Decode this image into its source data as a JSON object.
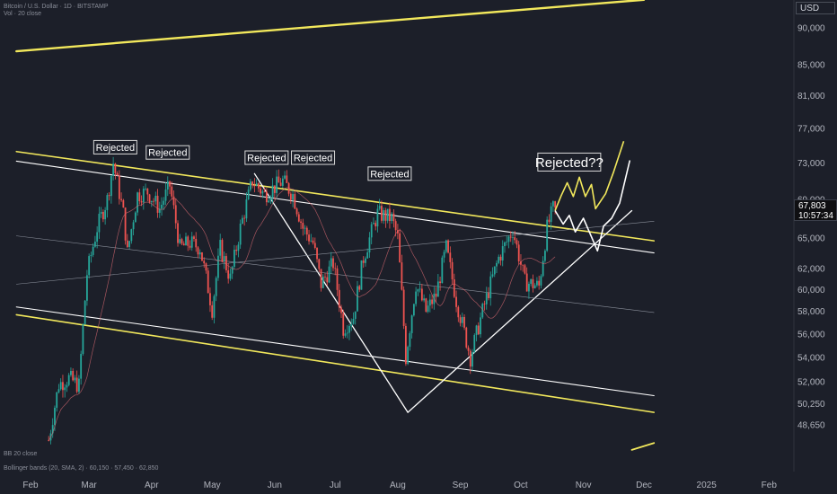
{
  "header": {
    "symbol_line": "Bitcoin / U.S. Dollar · 1D · BITSTAMP",
    "indicator_line": "Vol · 20 close"
  },
  "currency_label": "USD",
  "price_tag": {
    "price": "67,803",
    "countdown": "10:57:34"
  },
  "footer": {
    "line1": "BB 20 close",
    "line2": "Bollinger bands (20, SMA, 2) · 60,150 · 57,450 · 62,850"
  },
  "chart_data": {
    "type": "candlestick",
    "title": "",
    "xlabel": "",
    "ylabel": "",
    "x_range": [
      "2024-01-25",
      "2025-02-25"
    ],
    "y_range": [
      46000,
      93000
    ],
    "y_ticks": [
      {
        "value": 90000,
        "label": "90,000"
      },
      {
        "value": 85000,
        "label": "85,000"
      },
      {
        "value": 81000,
        "label": "81,000"
      },
      {
        "value": 77000,
        "label": "77,000"
      },
      {
        "value": 73000,
        "label": "73,000"
      },
      {
        "value": 69000,
        "label": "69,000"
      },
      {
        "value": 65000,
        "label": "65,000"
      },
      {
        "value": 62000,
        "label": "62,000"
      },
      {
        "value": 60000,
        "label": "60,000"
      },
      {
        "value": 58000,
        "label": "58,000"
      },
      {
        "value": 56000,
        "label": "56,000"
      },
      {
        "value": 54000,
        "label": "54,000"
      },
      {
        "value": 52000,
        "label": "52,000"
      },
      {
        "value": 50250,
        "label": "50,250"
      },
      {
        "value": 48650,
        "label": "48,650"
      }
    ],
    "x_ticks": [
      {
        "date": "2024-02-01",
        "label": "Feb"
      },
      {
        "date": "2024-03-01",
        "label": "Mar"
      },
      {
        "date": "2024-04-01",
        "label": "Apr"
      },
      {
        "date": "2024-05-01",
        "label": "May"
      },
      {
        "date": "2024-06-01",
        "label": "Jun"
      },
      {
        "date": "2024-07-01",
        "label": "Jul"
      },
      {
        "date": "2024-08-01",
        "label": "Aug"
      },
      {
        "date": "2024-09-01",
        "label": "Sep"
      },
      {
        "date": "2024-10-01",
        "label": "Oct"
      },
      {
        "date": "2024-11-01",
        "label": "Nov"
      },
      {
        "date": "2024-12-01",
        "label": "Dec"
      },
      {
        "date": "2025-01-01",
        "label": "2025"
      },
      {
        "date": "2025-02-01",
        "label": "Feb"
      }
    ],
    "last_price": 67803,
    "close_series": [
      {
        "date": "2024-02-10",
        "close": 47500
      },
      {
        "date": "2024-02-15",
        "close": 51800
      },
      {
        "date": "2024-02-20",
        "close": 52300
      },
      {
        "date": "2024-02-25",
        "close": 51700
      },
      {
        "date": "2024-02-29",
        "close": 61500
      },
      {
        "date": "2024-03-05",
        "close": 66000
      },
      {
        "date": "2024-03-10",
        "close": 69000
      },
      {
        "date": "2024-03-13",
        "close": 73000
      },
      {
        "date": "2024-03-18",
        "close": 67500
      },
      {
        "date": "2024-03-20",
        "close": 63500
      },
      {
        "date": "2024-03-25",
        "close": 69500
      },
      {
        "date": "2024-03-30",
        "close": 69800
      },
      {
        "date": "2024-04-05",
        "close": 68000
      },
      {
        "date": "2024-04-10",
        "close": 70500
      },
      {
        "date": "2024-04-15",
        "close": 64000
      },
      {
        "date": "2024-04-20",
        "close": 64500
      },
      {
        "date": "2024-04-25",
        "close": 64000
      },
      {
        "date": "2024-05-01",
        "close": 58200
      },
      {
        "date": "2024-05-05",
        "close": 64000
      },
      {
        "date": "2024-05-10",
        "close": 61000
      },
      {
        "date": "2024-05-15",
        "close": 66000
      },
      {
        "date": "2024-05-21",
        "close": 71000
      },
      {
        "date": "2024-05-27",
        "close": 69500
      },
      {
        "date": "2024-06-05",
        "close": 71000
      },
      {
        "date": "2024-06-10",
        "close": 69500
      },
      {
        "date": "2024-06-15",
        "close": 66000
      },
      {
        "date": "2024-06-20",
        "close": 64500
      },
      {
        "date": "2024-06-24",
        "close": 60500
      },
      {
        "date": "2024-06-30",
        "close": 62500
      },
      {
        "date": "2024-07-05",
        "close": 56500
      },
      {
        "date": "2024-07-10",
        "close": 57500
      },
      {
        "date": "2024-07-15",
        "close": 63000
      },
      {
        "date": "2024-07-22",
        "close": 67500
      },
      {
        "date": "2024-07-29",
        "close": 67000
      },
      {
        "date": "2024-08-01",
        "close": 65000
      },
      {
        "date": "2024-08-05",
        "close": 54000
      },
      {
        "date": "2024-08-10",
        "close": 60500
      },
      {
        "date": "2024-08-15",
        "close": 58000
      },
      {
        "date": "2024-08-20",
        "close": 59500
      },
      {
        "date": "2024-08-25",
        "close": 64000
      },
      {
        "date": "2024-08-30",
        "close": 59000
      },
      {
        "date": "2024-09-06",
        "close": 54000
      },
      {
        "date": "2024-09-12",
        "close": 58000
      },
      {
        "date": "2024-09-20",
        "close": 63000
      },
      {
        "date": "2024-09-27",
        "close": 65800
      },
      {
        "date": "2024-10-03",
        "close": 60700
      },
      {
        "date": "2024-10-10",
        "close": 60300
      },
      {
        "date": "2024-10-14",
        "close": 66000
      },
      {
        "date": "2024-10-17",
        "close": 68000
      },
      {
        "date": "2024-10-18",
        "close": 67803
      }
    ],
    "annotations": [
      {
        "text": "Rejected",
        "date": "2024-03-14",
        "value": 74800,
        "size": "small"
      },
      {
        "text": "Rejected",
        "date": "2024-04-09",
        "value": 74200,
        "size": "small"
      },
      {
        "text": "Rejected",
        "date": "2024-05-28",
        "value": 73600,
        "size": "small"
      },
      {
        "text": "Rejected",
        "date": "2024-06-20",
        "value": 73600,
        "size": "small"
      },
      {
        "text": "Rejected",
        "date": "2024-07-28",
        "value": 71800,
        "size": "small"
      },
      {
        "text": "Rejected??",
        "date": "2024-10-25",
        "value": 73100,
        "size": "large"
      }
    ],
    "trendlines": [
      {
        "color": "#f2e85c",
        "width": 1.6,
        "p1": {
          "date": "2024-01-25",
          "value": 74300
        },
        "p2": {
          "date": "2024-12-06",
          "value": 64700
        }
      },
      {
        "color": "#f2e85c",
        "width": 1.6,
        "p1": {
          "date": "2024-01-25",
          "value": 57700
        },
        "p2": {
          "date": "2024-12-06",
          "value": 49600
        }
      },
      {
        "color": "#f2e85c",
        "width": 2.4,
        "p1": {
          "date": "2024-01-25",
          "value": 86800
        },
        "p2": {
          "date": "2024-12-01",
          "value": 94000
        }
      },
      {
        "color": "#f2e85c",
        "width": 1.8,
        "p1": {
          "date": "2024-11-25",
          "value": 46800
        },
        "p2": {
          "date": "2024-12-06",
          "value": 47300
        }
      },
      {
        "color": "#ffffff",
        "width": 1.1,
        "p1": {
          "date": "2024-01-25",
          "value": 73200
        },
        "p2": {
          "date": "2024-12-06",
          "value": 63500
        }
      },
      {
        "color": "#ffffff",
        "width": 1.1,
        "p1": {
          "date": "2024-01-25",
          "value": 58400
        },
        "p2": {
          "date": "2024-12-06",
          "value": 50900
        }
      },
      {
        "color": "#ffffff",
        "width": 1.3,
        "p1": {
          "date": "2024-05-22",
          "value": 71800
        },
        "p2": {
          "date": "2024-08-06",
          "value": 49600
        }
      },
      {
        "color": "#ffffff",
        "width": 1.3,
        "p1": {
          "date": "2024-08-06",
          "value": 49600
        },
        "p2": {
          "date": "2024-11-25",
          "value": 67800
        }
      },
      {
        "color": "#8a8f9a",
        "width": 0.6,
        "p1": {
          "date": "2024-01-25",
          "value": 60500
        },
        "p2": {
          "date": "2024-12-06",
          "value": 66700
        }
      },
      {
        "color": "#8a8f9a",
        "width": 0.6,
        "p1": {
          "date": "2024-01-25",
          "value": 65200
        },
        "p2": {
          "date": "2024-12-06",
          "value": 57900
        }
      }
    ],
    "projections": [
      {
        "name": "",
        "color": "#f2e85c",
        "points": [
          {
            "date": "2024-10-18",
            "value": 67800
          },
          {
            "date": "2024-10-21",
            "value": 69400
          },
          {
            "date": "2024-10-24",
            "value": 70800
          },
          {
            "date": "2024-10-27",
            "value": 69300
          },
          {
            "date": "2024-10-30",
            "value": 71400
          },
          {
            "date": "2024-11-02",
            "value": 69300
          },
          {
            "date": "2024-11-05",
            "value": 70600
          },
          {
            "date": "2024-11-07",
            "value": 68000
          },
          {
            "date": "2024-11-12",
            "value": 69600
          },
          {
            "date": "2024-11-16",
            "value": 72000
          },
          {
            "date": "2024-11-21",
            "value": 75500
          }
        ]
      },
      {
        "name": "",
        "color": "#ffffff",
        "points": [
          {
            "date": "2024-10-18",
            "value": 67800
          },
          {
            "date": "2024-10-22",
            "value": 66400
          },
          {
            "date": "2024-10-25",
            "value": 67300
          },
          {
            "date": "2024-10-28",
            "value": 65600
          },
          {
            "date": "2024-11-01",
            "value": 67000
          },
          {
            "date": "2024-11-05",
            "value": 65100
          },
          {
            "date": "2024-11-08",
            "value": 63700
          },
          {
            "date": "2024-11-11",
            "value": 66200
          },
          {
            "date": "2024-11-15",
            "value": 67000
          },
          {
            "date": "2024-11-19",
            "value": 68600
          },
          {
            "date": "2024-11-24",
            "value": 73300
          }
        ]
      }
    ],
    "grid": false,
    "legend": "none"
  }
}
